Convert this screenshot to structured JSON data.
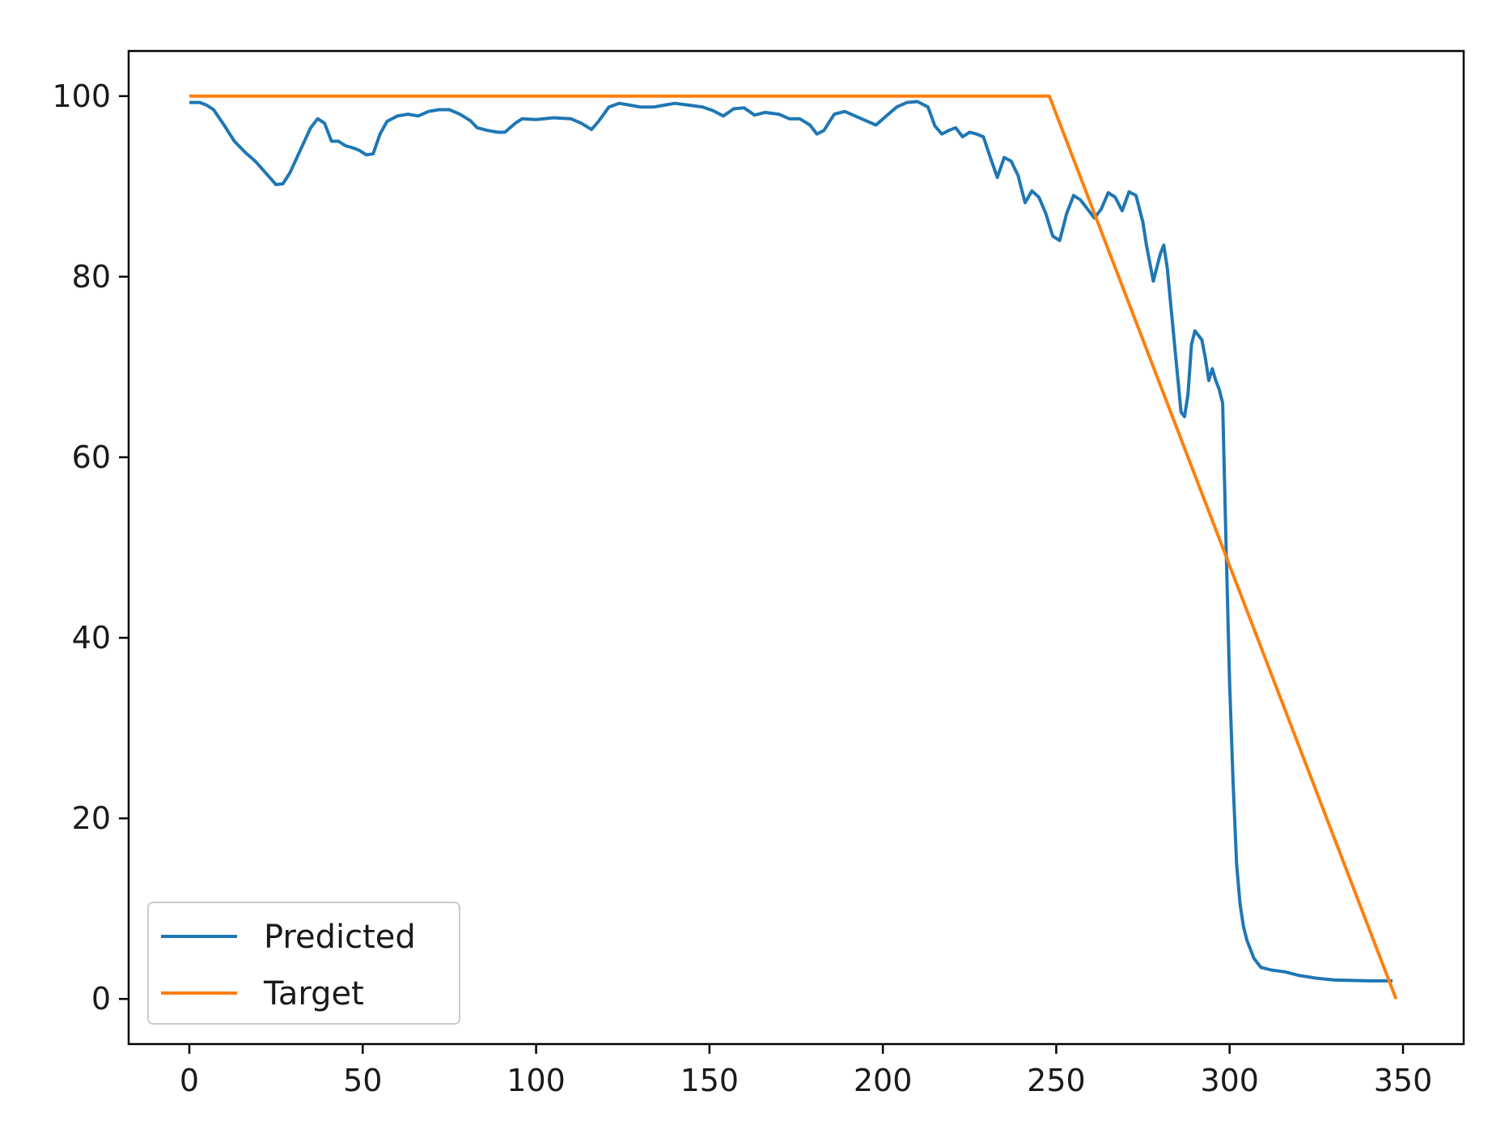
{
  "chart_data": {
    "type": "line",
    "title": "",
    "xlabel": "",
    "ylabel": "",
    "xlim": [
      -17.5,
      367.5
    ],
    "ylim": [
      -5,
      105
    ],
    "x_ticks": [
      0,
      50,
      100,
      150,
      200,
      250,
      300,
      350
    ],
    "y_ticks": [
      0,
      20,
      40,
      60,
      80,
      100
    ],
    "grid": false,
    "legend_position": "lower-left",
    "series": [
      {
        "name": "Predicted",
        "color": "#1f77b4",
        "points": [
          [
            0,
            99.3
          ],
          [
            3,
            99.3
          ],
          [
            5,
            99.0
          ],
          [
            7,
            98.5
          ],
          [
            10,
            96.8
          ],
          [
            13,
            95.0
          ],
          [
            16,
            93.8
          ],
          [
            19,
            92.8
          ],
          [
            22,
            91.5
          ],
          [
            25,
            90.2
          ],
          [
            27,
            90.3
          ],
          [
            29,
            91.5
          ],
          [
            32,
            94.0
          ],
          [
            35,
            96.5
          ],
          [
            37,
            97.5
          ],
          [
            39,
            97.0
          ],
          [
            41,
            95.0
          ],
          [
            43,
            95.0
          ],
          [
            45,
            94.5
          ],
          [
            47,
            94.3
          ],
          [
            49,
            94.0
          ],
          [
            51,
            93.5
          ],
          [
            53,
            93.6
          ],
          [
            55,
            95.8
          ],
          [
            57,
            97.2
          ],
          [
            60,
            97.8
          ],
          [
            63,
            98.0
          ],
          [
            66,
            97.8
          ],
          [
            69,
            98.3
          ],
          [
            72,
            98.5
          ],
          [
            75,
            98.5
          ],
          [
            78,
            98.0
          ],
          [
            81,
            97.3
          ],
          [
            83,
            96.5
          ],
          [
            86,
            96.2
          ],
          [
            89,
            96.0
          ],
          [
            91,
            96.0
          ],
          [
            94,
            97.0
          ],
          [
            96,
            97.5
          ],
          [
            100,
            97.4
          ],
          [
            105,
            97.6
          ],
          [
            110,
            97.5
          ],
          [
            113,
            97.0
          ],
          [
            116,
            96.3
          ],
          [
            118,
            97.2
          ],
          [
            121,
            98.8
          ],
          [
            124,
            99.2
          ],
          [
            127,
            99.0
          ],
          [
            130,
            98.8
          ],
          [
            134,
            98.8
          ],
          [
            137,
            99.0
          ],
          [
            140,
            99.2
          ],
          [
            144,
            99.0
          ],
          [
            148,
            98.8
          ],
          [
            151,
            98.4
          ],
          [
            154,
            97.8
          ],
          [
            157,
            98.6
          ],
          [
            160,
            98.7
          ],
          [
            163,
            97.9
          ],
          [
            166,
            98.2
          ],
          [
            170,
            98.0
          ],
          [
            173,
            97.5
          ],
          [
            176,
            97.5
          ],
          [
            179,
            96.8
          ],
          [
            181,
            95.8
          ],
          [
            183,
            96.2
          ],
          [
            186,
            98.0
          ],
          [
            189,
            98.3
          ],
          [
            192,
            97.8
          ],
          [
            195,
            97.3
          ],
          [
            198,
            96.8
          ],
          [
            201,
            97.8
          ],
          [
            204,
            98.8
          ],
          [
            207,
            99.3
          ],
          [
            210,
            99.4
          ],
          [
            213,
            98.8
          ],
          [
            215,
            96.7
          ],
          [
            217,
            95.8
          ],
          [
            219,
            96.2
          ],
          [
            221,
            96.5
          ],
          [
            223,
            95.5
          ],
          [
            225,
            96.0
          ],
          [
            227,
            95.8
          ],
          [
            229,
            95.5
          ],
          [
            231,
            93.2
          ],
          [
            233,
            91.0
          ],
          [
            235,
            93.2
          ],
          [
            237,
            92.8
          ],
          [
            239,
            91.2
          ],
          [
            241,
            88.2
          ],
          [
            243,
            89.5
          ],
          [
            245,
            88.8
          ],
          [
            247,
            87.0
          ],
          [
            249,
            84.5
          ],
          [
            251,
            84.0
          ],
          [
            253,
            87.0
          ],
          [
            255,
            89.0
          ],
          [
            257,
            88.5
          ],
          [
            259,
            87.5
          ],
          [
            261,
            86.5
          ],
          [
            263,
            87.5
          ],
          [
            265,
            89.3
          ],
          [
            267,
            88.8
          ],
          [
            269,
            87.3
          ],
          [
            271,
            89.4
          ],
          [
            273,
            89.0
          ],
          [
            275,
            86.0
          ],
          [
            276,
            83.5
          ],
          [
            278,
            79.5
          ],
          [
            280,
            82.5
          ],
          [
            281,
            83.5
          ],
          [
            282,
            81.0
          ],
          [
            284,
            73.0
          ],
          [
            286,
            65.0
          ],
          [
            287,
            64.5
          ],
          [
            288,
            67.0
          ],
          [
            289,
            72.5
          ],
          [
            290,
            74.0
          ],
          [
            292,
            73.0
          ],
          [
            293,
            71.0
          ],
          [
            294,
            68.5
          ],
          [
            295,
            69.8
          ],
          [
            296,
            68.5
          ],
          [
            297,
            67.5
          ],
          [
            298,
            66.0
          ],
          [
            299,
            50.0
          ],
          [
            300,
            35.0
          ],
          [
            301,
            24.0
          ],
          [
            302,
            15.0
          ],
          [
            303,
            10.5
          ],
          [
            304,
            8.0
          ],
          [
            305,
            6.5
          ],
          [
            307,
            4.5
          ],
          [
            309,
            3.5
          ],
          [
            312,
            3.2
          ],
          [
            316,
            3.0
          ],
          [
            320,
            2.6
          ],
          [
            325,
            2.3
          ],
          [
            330,
            2.1
          ],
          [
            340,
            2.0
          ],
          [
            347,
            2.0
          ]
        ]
      },
      {
        "name": "Target",
        "color": "#ff7f0e",
        "points": [
          [
            0,
            100
          ],
          [
            248,
            100
          ],
          [
            348,
            0
          ]
        ]
      }
    ]
  }
}
